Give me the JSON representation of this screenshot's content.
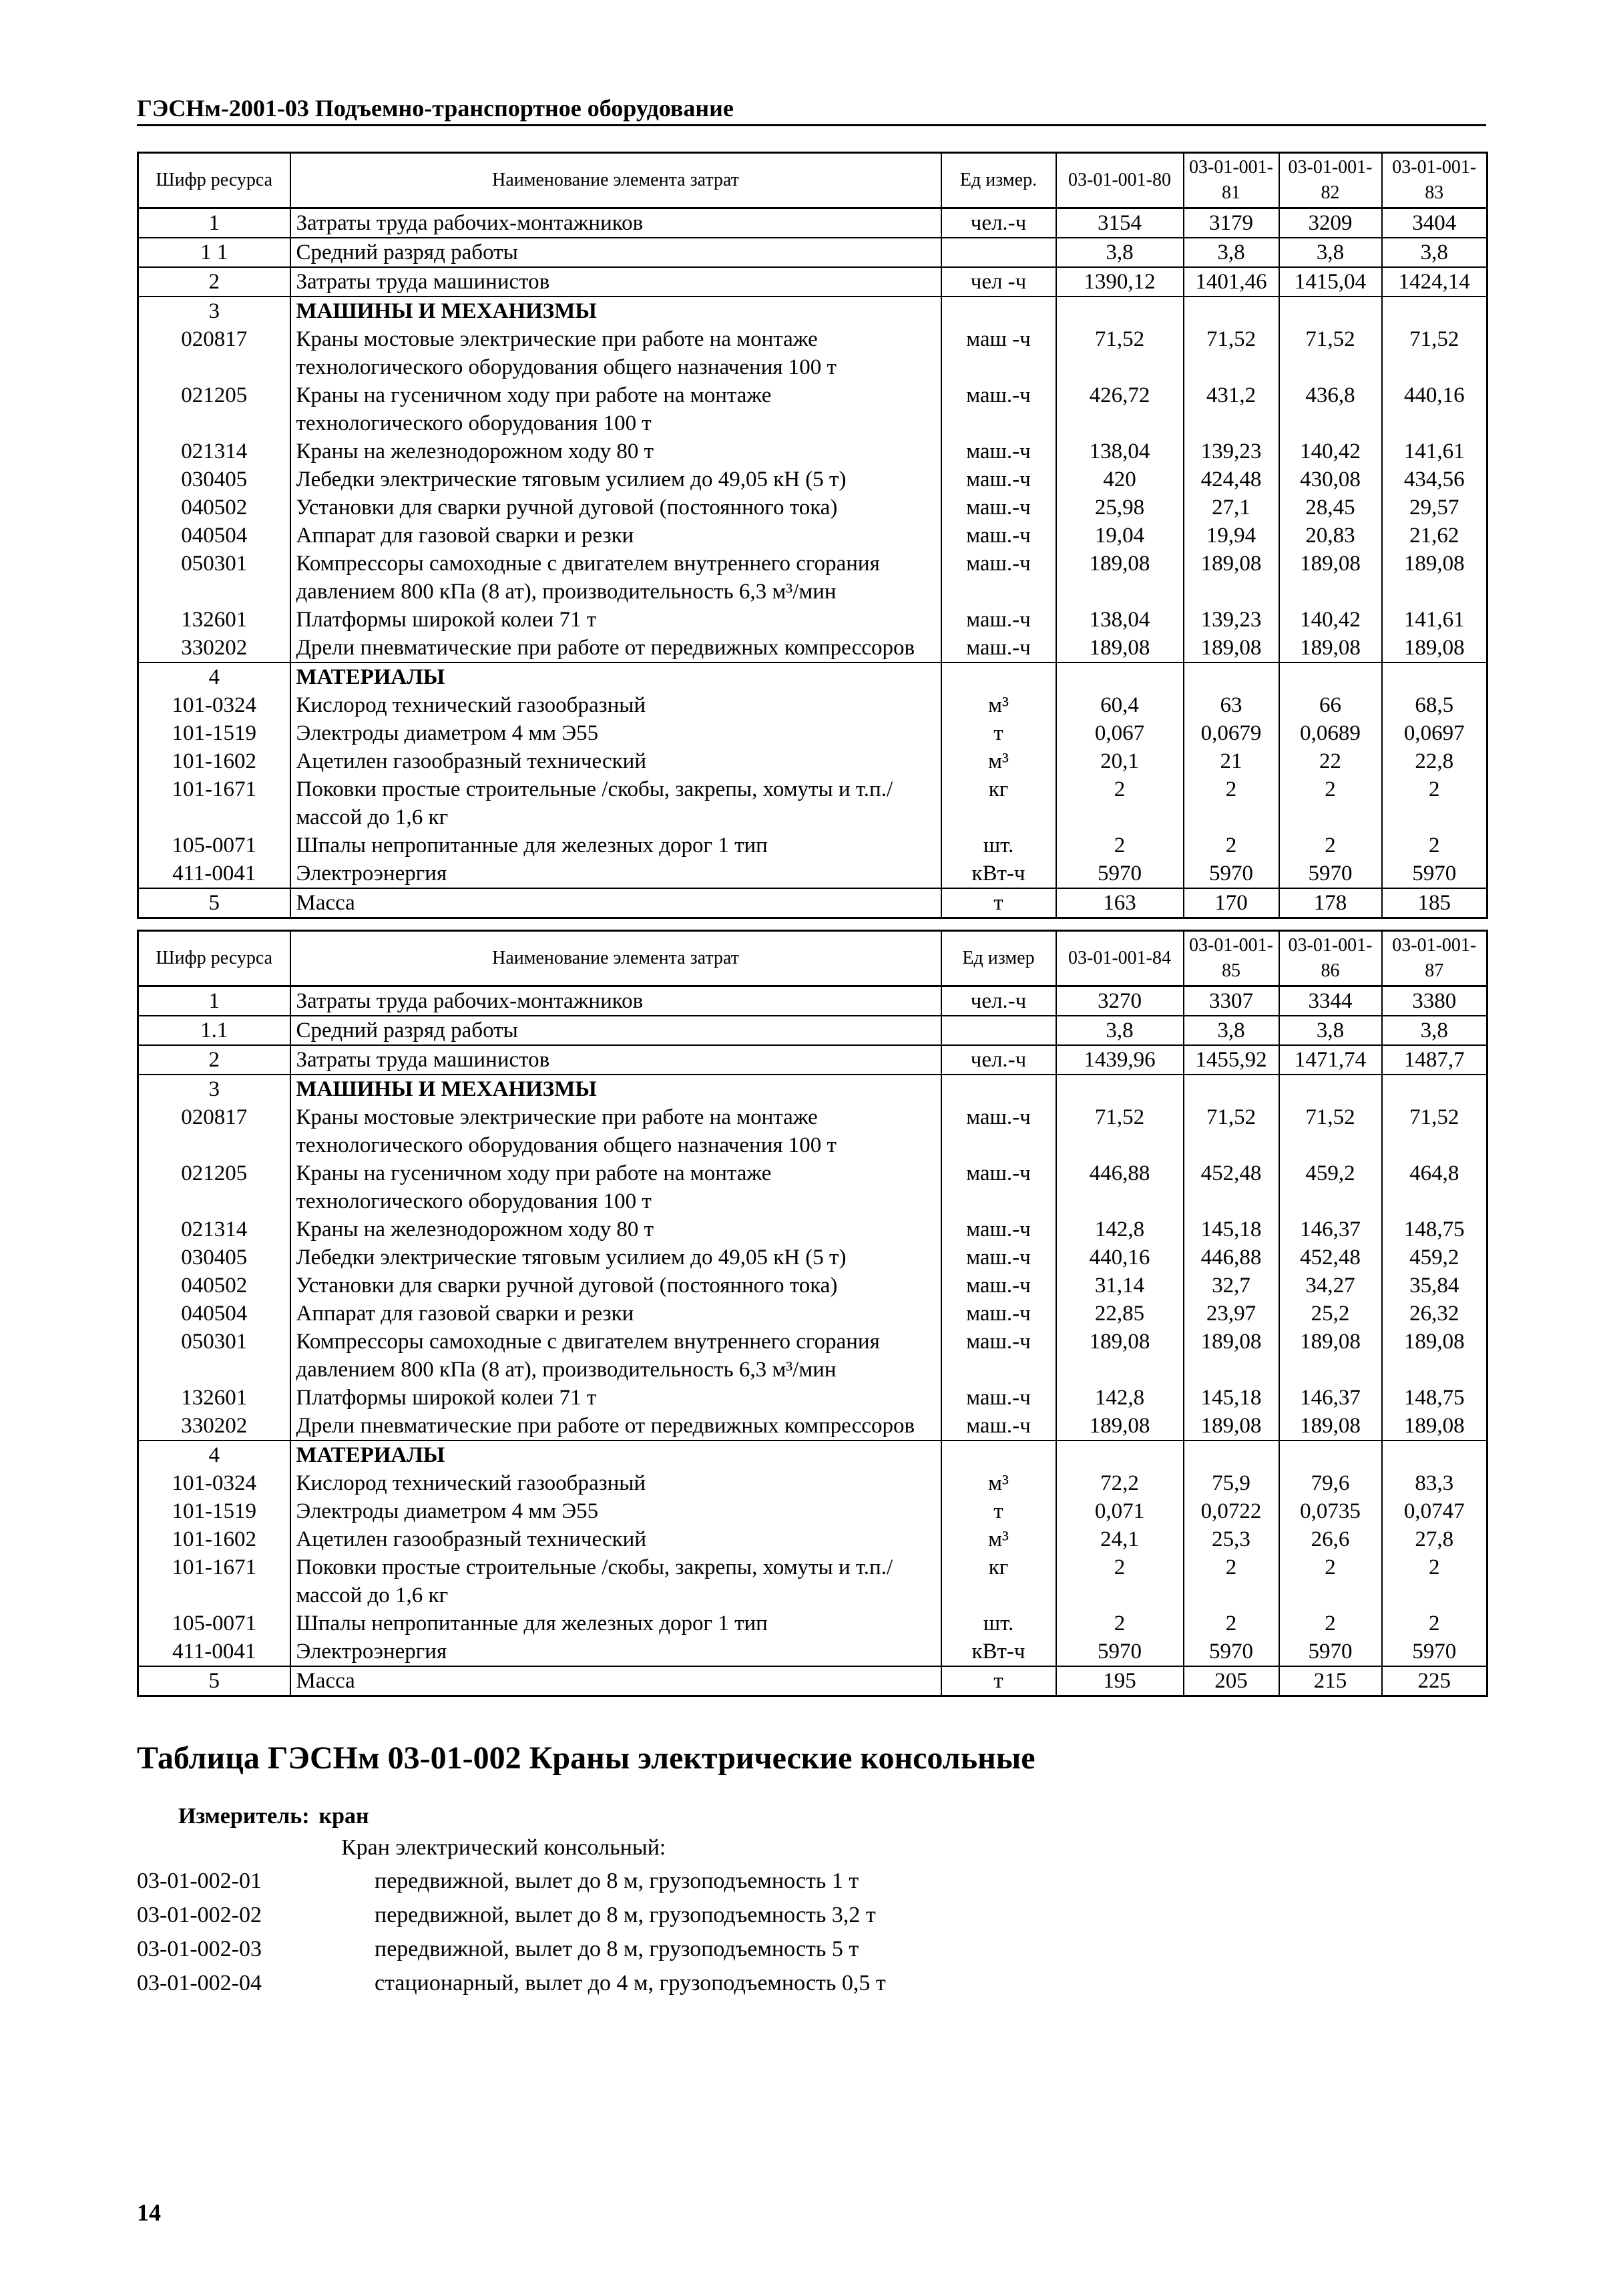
{
  "header": {
    "title": "ГЭСНм-2001-03 Подъемно-транспортное оборудование"
  },
  "tables": [
    {
      "header": [
        "Шифр ресурса",
        "Наименование элемента затрат",
        "Ед измер.",
        "03-01-001-80",
        "03-01-001-81",
        "03-01-001-82",
        "03-01-001-83"
      ],
      "rows": [
        [
          "1",
          "Затраты труда рабочих-монтажников",
          "чел.-ч",
          "3154",
          "3179",
          "3209",
          "3404"
        ],
        [
          "1 1",
          "Средний разряд работы",
          null,
          "3,8",
          "3,8",
          "3,8",
          "3,8"
        ],
        [
          "2",
          "Затраты труда машинистов",
          "чел -ч",
          "1390,12",
          "1401,46",
          "1415,04",
          "1424,14"
        ],
        [
          "3",
          "МАШИНЫ И МЕХАНИЗМЫ"
        ],
        [
          "020817",
          "Краны мостовые электрические при работе на монтаже технологического оборудования общего назначения 100 т",
          "маш -ч",
          "71,52",
          "71,52",
          "71,52",
          "71,52"
        ],
        [
          "021205",
          "Краны на гусеничном ходу при работе на монтаже технологического оборудования 100 т",
          "маш.-ч",
          "426,72",
          "431,2",
          "436,8",
          "440,16"
        ],
        [
          "021314",
          "Краны на железнодорожном ходу 80 т",
          "маш.-ч",
          "138,04",
          "139,23",
          "140,42",
          "141,61"
        ],
        [
          "030405",
          "Лебедки электрические тяговым усилием до 49,05 кН (5 т)",
          "маш.-ч",
          "420",
          "424,48",
          "430,08",
          "434,56"
        ],
        [
          "040502",
          "Установки для сварки ручной дуговой (постоянного тока)",
          "маш.-ч",
          "25,98",
          "27,1",
          "28,45",
          "29,57"
        ],
        [
          "040504",
          "Аппарат для газовой сварки и резки",
          "маш.-ч",
          "19,04",
          "19,94",
          "20,83",
          "21,62"
        ],
        [
          "050301",
          "Компрессоры самоходные с двигателем внутреннего сгорания давлением 800 кПа (8 ат), производительность 6,3 м³/мин",
          "маш.-ч",
          "189,08",
          "189,08",
          "189,08",
          "189,08"
        ],
        [
          "132601",
          "Платформы широкой колеи 71 т",
          "маш.-ч",
          "138,04",
          "139,23",
          "140,42",
          "141,61"
        ],
        [
          "330202",
          "Дрели пневматические при работе от передвижных компрессоров",
          "маш.-ч",
          "189,08",
          "189,08",
          "189,08",
          "189,08"
        ],
        [
          "4",
          "МАТЕРИАЛЫ"
        ],
        [
          "101-0324",
          "Кислород технический газообразный",
          "м³",
          "60,4",
          "63",
          "66",
          "68,5"
        ],
        [
          "101-1519",
          "Электроды диаметром 4 мм Э55",
          "т",
          "0,067",
          "0,0679",
          "0,0689",
          "0,0697"
        ],
        [
          "101-1602",
          "Ацетилен газообразный технический",
          "м³",
          "20,1",
          "21",
          "22",
          "22,8"
        ],
        [
          "101-1671",
          "Поковки простые строительные /скобы, закрепы, хомуты и т.п./ массой до 1,6 кг",
          "кг",
          "2",
          "2",
          "2",
          "2"
        ],
        [
          "105-0071",
          "Шпалы непропитанные для железных дорог 1 тип",
          "шт.",
          "2",
          "2",
          "2",
          "2"
        ],
        [
          "411-0041",
          "Электроэнергия",
          "кВт-ч",
          "5970",
          "5970",
          "5970",
          "5970"
        ],
        [
          "5",
          "Масса",
          "т",
          "163",
          "170",
          "178",
          "185"
        ]
      ]
    },
    {
      "header": [
        "Шифр ресурса",
        "Наименование элемента затрат",
        "Ед измер",
        "03-01-001-84",
        "03-01-001-85",
        "03-01-001-86",
        "03-01-001-87"
      ],
      "rows": [
        [
          "1",
          "Затраты труда рабочих-монтажников",
          "чел.-ч",
          "3270",
          "3307",
          "3344",
          "3380"
        ],
        [
          "1.1",
          "Средний разряд работы",
          null,
          "3,8",
          "3,8",
          "3,8",
          "3,8"
        ],
        [
          "2",
          "Затраты труда машинистов",
          "чел.-ч",
          "1439,96",
          "1455,92",
          "1471,74",
          "1487,7"
        ],
        [
          "3",
          "МАШИНЫ И МЕХАНИЗМЫ"
        ],
        [
          "020817",
          "Краны мостовые электрические при работе на монтаже технологического оборудования общего назначения 100 т",
          "маш.-ч",
          "71,52",
          "71,52",
          "71,52",
          "71,52"
        ],
        [
          "021205",
          "Краны на гусеничном ходу при работе на монтаже технологического оборудования 100 т",
          "маш.-ч",
          "446,88",
          "452,48",
          "459,2",
          "464,8"
        ],
        [
          "021314",
          "Краны на железнодорожном ходу 80 т",
          "маш.-ч",
          "142,8",
          "145,18",
          "146,37",
          "148,75"
        ],
        [
          "030405",
          "Лебедки электрические тяговым усилием до 49,05 кН (5 т)",
          "маш.-ч",
          "440,16",
          "446,88",
          "452,48",
          "459,2"
        ],
        [
          "040502",
          "Установки для сварки ручной дуговой (постоянного тока)",
          "маш.-ч",
          "31,14",
          "32,7",
          "34,27",
          "35,84"
        ],
        [
          "040504",
          "Аппарат для газовой сварки и резки",
          "маш.-ч",
          "22,85",
          "23,97",
          "25,2",
          "26,32"
        ],
        [
          "050301",
          "Компрессоры самоходные с двигателем внутреннего сгорания давлением 800 кПа (8 ат), производительность 6,3 м³/мин",
          "маш.-ч",
          "189,08",
          "189,08",
          "189,08",
          "189,08"
        ],
        [
          "132601",
          "Платформы широкой колеи 71 т",
          "маш.-ч",
          "142,8",
          "145,18",
          "146,37",
          "148,75"
        ],
        [
          "330202",
          "Дрели пневматические при работе от передвижных компрессоров",
          "маш.-ч",
          "189,08",
          "189,08",
          "189,08",
          "189,08"
        ],
        [
          "4",
          "МАТЕРИАЛЫ"
        ],
        [
          "101-0324",
          "Кислород технический газообразный",
          "м³",
          "72,2",
          "75,9",
          "79,6",
          "83,3"
        ],
        [
          "101-1519",
          "Электроды диаметром 4 мм Э55",
          "т",
          "0,071",
          "0,0722",
          "0,0735",
          "0,0747"
        ],
        [
          "101-1602",
          "Ацетилен газообразный технический",
          "м³",
          "24,1",
          "25,3",
          "26,6",
          "27,8"
        ],
        [
          "101-1671",
          "Поковки простые строительные /скобы, закрепы, хомуты и т.п./ массой до 1,6 кг",
          "кг",
          "2",
          "2",
          "2",
          "2"
        ],
        [
          "105-0071",
          "Шпалы непропитанные для железных дорог 1 тип",
          "шт.",
          "2",
          "2",
          "2",
          "2"
        ],
        [
          "411-0041",
          "Электроэнергия",
          "кВт-ч",
          "5970",
          "5970",
          "5970",
          "5970"
        ],
        [
          "5",
          "Масса",
          "т",
          "195",
          "205",
          "215",
          "225"
        ]
      ]
    }
  ],
  "section": {
    "title": "Таблица ГЭСНм 03-01-002 Краны электрические консольные",
    "meter_label": "Измеритель:",
    "meter": "кран",
    "intro": "Кран электрический консольный:",
    "items": [
      {
        "code": "03-01-002-01",
        "text": "передвижной, вылет до 8 м, грузоподъемность 1 т"
      },
      {
        "code": "03-01-002-02",
        "text": "передвижной, вылет до 8 м, грузоподъемность 3,2 т"
      },
      {
        "code": "03-01-002-03",
        "text": "передвижной, вылет до 8 м, грузоподъемность 5 т"
      },
      {
        "code": "03-01-002-04",
        "text": "стационарный, вылет до 4 м, грузоподъемность 0,5 т"
      }
    ]
  },
  "footer": {
    "page": "14"
  }
}
